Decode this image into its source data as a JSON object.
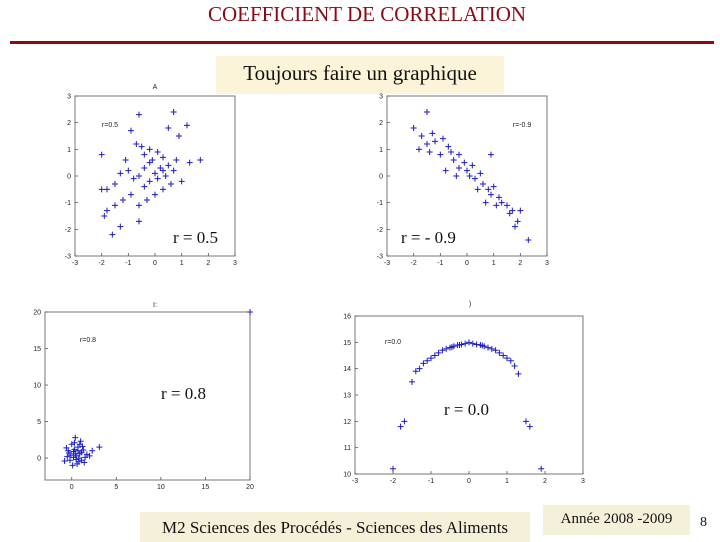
{
  "slide": {
    "title": "COEFFICIENT DE CORRELATION",
    "banner": "Toujours faire un graphique",
    "footer_course": "M2 Sciences des Procédés - Sciences des Aliments",
    "footer_year": "Année 2008 -2009",
    "page_number": "8"
  },
  "colors": {
    "title": "#8b0a14",
    "points": "#1a1acc",
    "banner_bg": "#fbf4d9",
    "footer_bg": "#f5f0d8"
  },
  "chart_data": [
    {
      "type": "scatter",
      "title": "",
      "top_mark": "A",
      "annotation": "r=0.5",
      "overlay_label": "r = 0.5",
      "xlim": [
        -3,
        3
      ],
      "ylim": [
        -3,
        3
      ],
      "xticks": [
        "-3",
        "-2",
        "-1",
        "0",
        "1",
        "2",
        "3"
      ],
      "yticks": [
        "3",
        "2",
        "1",
        "0",
        "-1",
        "-2",
        "-3"
      ],
      "points": [
        [
          -0.6,
          2.3
        ],
        [
          -0.9,
          1.7
        ],
        [
          0.7,
          2.4
        ],
        [
          0.5,
          1.8
        ],
        [
          1.2,
          1.9
        ],
        [
          0.9,
          1.5
        ],
        [
          -2.0,
          0.8
        ],
        [
          -1.1,
          0.6
        ],
        [
          -0.7,
          1.2
        ],
        [
          -0.5,
          1.1
        ],
        [
          -0.4,
          0.8
        ],
        [
          -0.2,
          1.0
        ],
        [
          -0.1,
          0.6
        ],
        [
          0.1,
          0.9
        ],
        [
          0.3,
          0.7
        ],
        [
          0.5,
          0.4
        ],
        [
          0.8,
          0.6
        ],
        [
          1.3,
          0.5
        ],
        [
          1.7,
          0.6
        ],
        [
          -1.8,
          -0.5
        ],
        [
          -1.5,
          -0.3
        ],
        [
          -1.3,
          0.1
        ],
        [
          -1.0,
          0.2
        ],
        [
          -0.8,
          -0.1
        ],
        [
          -0.6,
          0.0
        ],
        [
          -0.4,
          0.3
        ],
        [
          -0.2,
          -0.2
        ],
        [
          0.0,
          0.1
        ],
        [
          0.2,
          0.3
        ],
        [
          0.4,
          0.0
        ],
        [
          0.6,
          -0.3
        ],
        [
          0.7,
          0.2
        ],
        [
          1.0,
          -0.2
        ],
        [
          -2.0,
          -0.5
        ],
        [
          -1.8,
          -1.3
        ],
        [
          -1.9,
          -1.5
        ],
        [
          -1.5,
          -1.1
        ],
        [
          -1.2,
          -0.9
        ],
        [
          -0.9,
          -0.7
        ],
        [
          -0.6,
          -1.1
        ],
        [
          -0.3,
          -0.9
        ],
        [
          0.0,
          -0.7
        ],
        [
          0.3,
          -0.5
        ],
        [
          -1.6,
          -2.2
        ],
        [
          -0.6,
          -1.7
        ],
        [
          -1.3,
          -1.9
        ],
        [
          0.3,
          0.2
        ],
        [
          0.1,
          -0.1
        ],
        [
          -0.2,
          0.5
        ],
        [
          -0.4,
          -0.4
        ]
      ]
    },
    {
      "type": "scatter",
      "title": "",
      "annotation": "r=-0.9",
      "overlay_label": "r = - 0.9",
      "xlim": [
        -3,
        3
      ],
      "ylim": [
        -3,
        3
      ],
      "xticks": [
        "-3",
        "-2",
        "-1",
        "0",
        "1",
        "2",
        "3"
      ],
      "yticks": [
        "3",
        "2",
        "1",
        "0",
        "-1",
        "-2",
        "-3"
      ],
      "points": [
        [
          -1.5,
          2.4
        ],
        [
          -2.0,
          1.8
        ],
        [
          -1.7,
          1.5
        ],
        [
          -1.3,
          1.6
        ],
        [
          -1.2,
          1.3
        ],
        [
          -1.5,
          1.2
        ],
        [
          -0.9,
          1.4
        ],
        [
          -0.7,
          1.1
        ],
        [
          -1.0,
          0.8
        ],
        [
          -0.6,
          0.9
        ],
        [
          -0.5,
          0.6
        ],
        [
          -0.3,
          0.8
        ],
        [
          -0.1,
          0.5
        ],
        [
          -0.3,
          0.3
        ],
        [
          0.0,
          0.2
        ],
        [
          0.2,
          0.4
        ],
        [
          0.1,
          0.0
        ],
        [
          0.3,
          -0.1
        ],
        [
          0.5,
          0.1
        ],
        [
          0.6,
          -0.3
        ],
        [
          0.4,
          -0.5
        ],
        [
          0.8,
          -0.5
        ],
        [
          0.9,
          -0.7
        ],
        [
          1.0,
          -0.4
        ],
        [
          1.2,
          -0.8
        ],
        [
          1.3,
          -1.0
        ],
        [
          1.5,
          -1.1
        ],
        [
          1.6,
          -1.4
        ],
        [
          1.9,
          -1.7
        ],
        [
          1.7,
          -1.3
        ],
        [
          2.0,
          -1.3
        ],
        [
          0.7,
          -1.0
        ],
        [
          1.1,
          -1.1
        ],
        [
          -1.8,
          1.0
        ],
        [
          -1.4,
          0.9
        ],
        [
          -0.8,
          0.2
        ],
        [
          -0.4,
          0.0
        ],
        [
          0.9,
          0.8
        ],
        [
          2.3,
          -2.4
        ],
        [
          1.8,
          -1.9
        ]
      ]
    },
    {
      "type": "scatter",
      "title": "",
      "top_mark": "I:",
      "annotation": "r=0.8",
      "overlay_label": "r = 0.8",
      "xlim": [
        -3,
        20
      ],
      "ylim": [
        -3,
        20
      ],
      "xticks": [
        "0",
        "5",
        "10",
        "15",
        "20"
      ],
      "yticks": [
        "20",
        "15",
        "10",
        "5",
        "0"
      ],
      "points": [
        [
          0.3,
          2.1
        ],
        [
          0.7,
          1.5
        ],
        [
          1.1,
          0.8
        ],
        [
          0.5,
          0.3
        ],
        [
          -0.6,
          1.4
        ],
        [
          -0.2,
          -0.3
        ],
        [
          0.2,
          0.9
        ],
        [
          0.8,
          -0.5
        ],
        [
          1.3,
          1.1
        ],
        [
          -0.5,
          0.2
        ],
        [
          0.4,
          2.8
        ],
        [
          0.9,
          0.6
        ],
        [
          1.5,
          0.1
        ],
        [
          0.0,
          1.9
        ],
        [
          -0.3,
          0.7
        ],
        [
          0.6,
          -0.8
        ],
        [
          1.0,
          2.3
        ],
        [
          1.7,
          0.5
        ],
        [
          0.1,
          -1.0
        ],
        [
          -0.8,
          -0.4
        ],
        [
          0.3,
          1.2
        ],
        [
          0.8,
          0.0
        ],
        [
          1.2,
          1.6
        ],
        [
          2.0,
          0.3
        ],
        [
          -0.1,
          0.4
        ],
        [
          0.5,
          -0.2
        ],
        [
          0.9,
          1.9
        ],
        [
          1.4,
          -0.6
        ],
        [
          2.3,
          1.0
        ],
        [
          0.2,
          0.1
        ],
        [
          0.7,
          1.0
        ],
        [
          1.1,
          -0.3
        ],
        [
          0.4,
          0.6
        ],
        [
          -0.4,
          1.0
        ],
        [
          3.1,
          1.5
        ],
        [
          20.0,
          20.0
        ]
      ]
    },
    {
      "type": "scatter",
      "title": "",
      "top_mark": ")",
      "annotation": "r=0.0",
      "overlay_label": "r = 0.0",
      "xlim": [
        -3,
        3
      ],
      "ylim": [
        10,
        16
      ],
      "xticks": [
        "-3",
        "-2",
        "-1",
        "0",
        "1",
        "2",
        "3"
      ],
      "yticks": [
        "16",
        "15",
        "14",
        "13",
        "12",
        "11",
        "10"
      ],
      "points": [
        [
          -2.0,
          10.2
        ],
        [
          -1.8,
          11.8
        ],
        [
          -1.7,
          12.0
        ],
        [
          -1.5,
          13.5
        ],
        [
          -1.4,
          13.9
        ],
        [
          -1.3,
          14.0
        ],
        [
          -1.2,
          14.2
        ],
        [
          -1.1,
          14.3
        ],
        [
          -1.0,
          14.4
        ],
        [
          -0.9,
          14.5
        ],
        [
          -0.8,
          14.6
        ],
        [
          -0.7,
          14.7
        ],
        [
          -0.6,
          14.75
        ],
        [
          -0.5,
          14.8
        ],
        [
          -0.4,
          14.85
        ],
        [
          -0.3,
          14.9
        ],
        [
          -0.2,
          14.92
        ],
        [
          -0.1,
          14.95
        ],
        [
          0.0,
          15.0
        ],
        [
          0.1,
          14.95
        ],
        [
          0.2,
          14.92
        ],
        [
          0.3,
          14.9
        ],
        [
          0.4,
          14.85
        ],
        [
          0.5,
          14.8
        ],
        [
          0.6,
          14.75
        ],
        [
          0.7,
          14.7
        ],
        [
          0.8,
          14.6
        ],
        [
          0.9,
          14.5
        ],
        [
          1.0,
          14.4
        ],
        [
          1.1,
          14.3
        ],
        [
          1.2,
          14.1
        ],
        [
          1.3,
          13.8
        ],
        [
          1.5,
          12.0
        ],
        [
          1.6,
          11.8
        ],
        [
          1.9,
          10.2
        ],
        [
          -0.45,
          14.82
        ],
        [
          0.35,
          14.88
        ],
        [
          -0.25,
          14.9
        ]
      ]
    }
  ]
}
